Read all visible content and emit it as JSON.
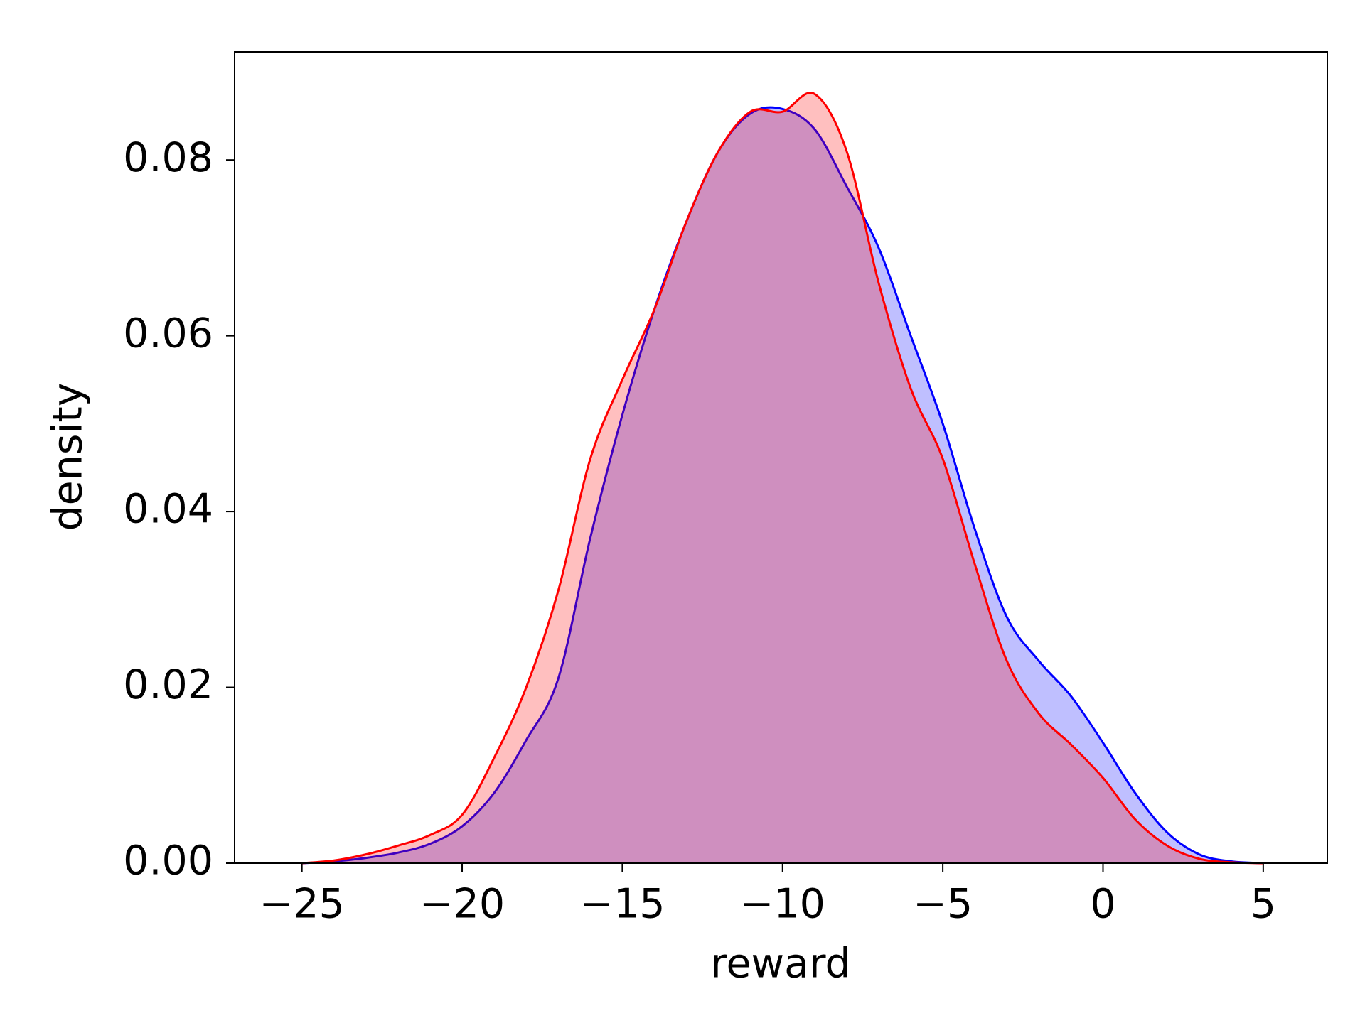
{
  "chart_data": {
    "type": "kde",
    "x_label": "reward",
    "y_label": "density",
    "x": [
      -25,
      -24,
      -23,
      -22,
      -21,
      -20,
      -19,
      -18,
      -17,
      -16,
      -15,
      -14,
      -13,
      -12,
      -11,
      -10,
      -9,
      -8,
      -7,
      -6,
      -5,
      -4,
      -3,
      -2,
      -1,
      0,
      1,
      2,
      3,
      4,
      5
    ],
    "series": [
      {
        "color": "#0000ff",
        "values": [
          0,
          0.0002,
          0.0006,
          0.0012,
          0.0022,
          0.0042,
          0.008,
          0.014,
          0.021,
          0.037,
          0.051,
          0.063,
          0.073,
          0.081,
          0.0853,
          0.0858,
          0.0835,
          0.077,
          0.07,
          0.06,
          0.05,
          0.038,
          0.028,
          0.023,
          0.019,
          0.0137,
          0.008,
          0.0035,
          0.001,
          0.0002,
          0
        ]
      },
      {
        "color": "#ff0000",
        "values": [
          0,
          0.0003,
          0.001,
          0.002,
          0.0032,
          0.0055,
          0.012,
          0.02,
          0.031,
          0.046,
          0.055,
          0.063,
          0.073,
          0.081,
          0.0855,
          0.0855,
          0.0875,
          0.081,
          0.066,
          0.054,
          0.046,
          0.034,
          0.023,
          0.017,
          0.0135,
          0.0097,
          0.005,
          0.002,
          0.0005,
          0.0001,
          0
        ]
      }
    ],
    "fill_opacity": 0.25,
    "xlim": [
      -27.1,
      7.0
    ],
    "ylim": [
      0,
      0.0923
    ],
    "xticks": [
      {
        "value": -25,
        "label": "−25"
      },
      {
        "value": -20,
        "label": "−20"
      },
      {
        "value": -15,
        "label": "−15"
      },
      {
        "value": -10,
        "label": "−10"
      },
      {
        "value": -5,
        "label": "−5"
      },
      0,
      5
    ],
    "yticks": [
      {
        "value": 0,
        "label": "0.00"
      },
      0.02,
      0.04,
      0.06,
      0.08
    ]
  }
}
